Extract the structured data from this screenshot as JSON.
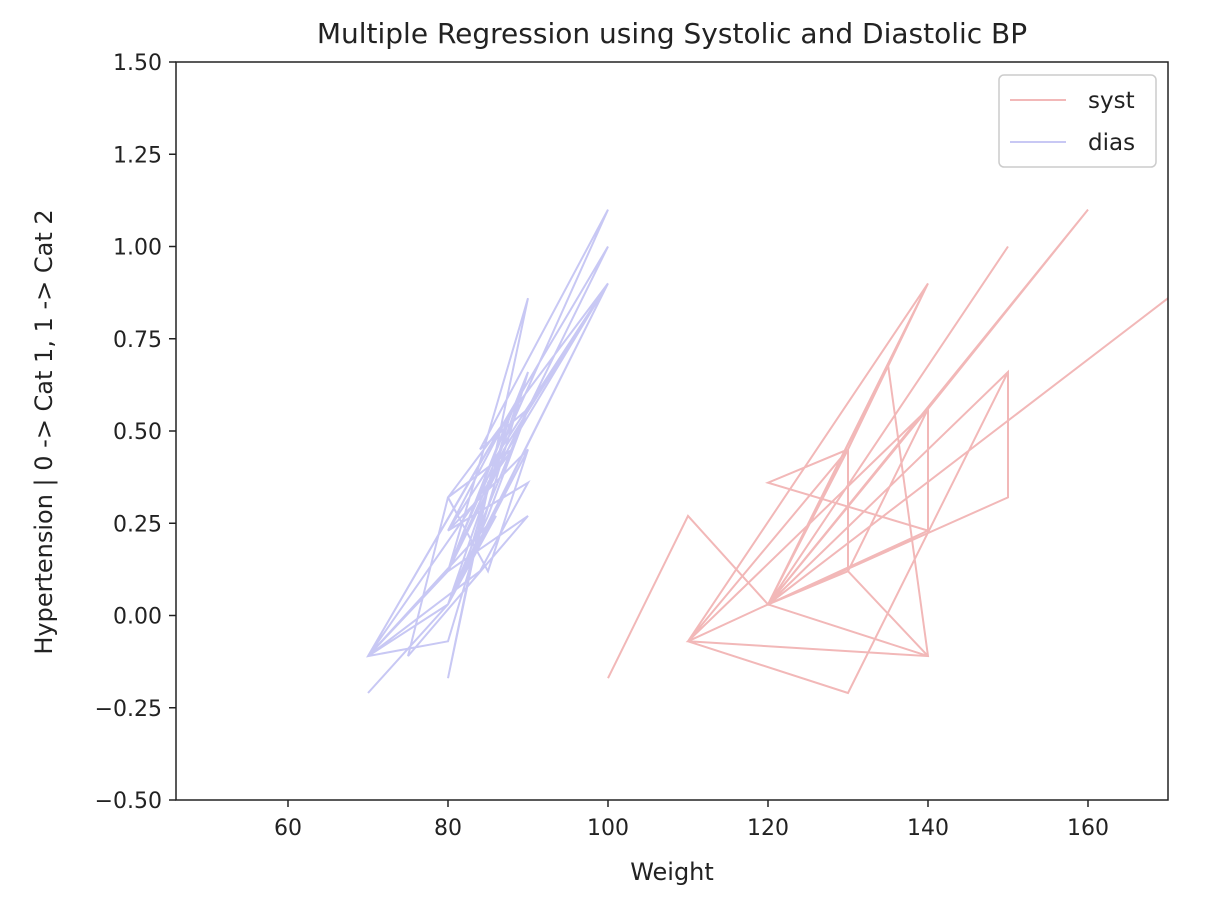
{
  "chart_data": {
    "type": "line",
    "title": "Multiple Regression using Systolic and Diastolic BP",
    "xlabel": "Weight",
    "ylabel": "Hypertension | 0 -> Cat 1, 1 -> Cat 2",
    "xlim": [
      46,
      170
    ],
    "ylim": [
      -0.5,
      1.5
    ],
    "xticks": [
      60,
      80,
      100,
      120,
      140,
      160
    ],
    "xtick_labels": [
      "60",
      "80",
      "100",
      "120",
      "140",
      "160"
    ],
    "yticks": [
      -0.5,
      -0.25,
      0.0,
      0.25,
      0.5,
      0.75,
      1.0,
      1.25,
      1.5
    ],
    "ytick_labels": [
      "−0.50",
      "−0.25",
      "0.00",
      "0.25",
      "0.50",
      "0.75",
      "1.00",
      "1.25",
      "1.50"
    ],
    "grid": false,
    "legend_position": "top-right",
    "series": [
      {
        "name": "syst",
        "color": "#f2b8b8",
        "x": [
          100,
          110,
          120,
          140,
          130,
          110,
          140,
          120,
          150,
          150,
          120,
          130,
          140,
          160,
          120,
          130,
          130,
          140,
          110,
          130,
          150,
          120,
          135,
          140,
          110,
          140,
          140,
          120,
          130,
          120,
          150,
          120,
          130,
          140,
          120,
          170,
          120,
          140,
          140,
          120,
          150,
          120,
          130,
          110,
          120,
          160
        ],
        "y": [
          -0.17,
          0.27,
          0.03,
          0.9,
          0.45,
          -0.07,
          0.9,
          0.03,
          0.66,
          0.32,
          0.03,
          0.12,
          0.56,
          1.1,
          0.03,
          0.45,
          0.12,
          0.56,
          -0.07,
          -0.21,
          0.66,
          0.03,
          0.68,
          -0.11,
          -0.07,
          0.56,
          0.23,
          0.36,
          0.45,
          0.03,
          1.0,
          0.03,
          0.12,
          -0.11,
          0.03,
          0.86,
          0.03,
          0.56,
          0.23,
          0.03,
          0.66,
          0.03,
          0.45,
          -0.07,
          0.03,
          1.1
        ]
      },
      {
        "name": "dias",
        "color": "#c8c8f4",
        "x": [
          70,
          80,
          90,
          80,
          70,
          85,
          100,
          80,
          90,
          75,
          80,
          88,
          70,
          80,
          100,
          85,
          80,
          90,
          80,
          88,
          70,
          86,
          80,
          90,
          84,
          100,
          82,
          90,
          80,
          87,
          100,
          80,
          85,
          90,
          80,
          88,
          82,
          100,
          80,
          90,
          84,
          70,
          80,
          90,
          85,
          80,
          90
        ],
        "y": [
          -0.21,
          0.03,
          0.66,
          -0.07,
          -0.11,
          0.45,
          1.0,
          0.12,
          0.27,
          -0.11,
          0.32,
          0.45,
          -0.11,
          0.03,
          0.9,
          0.36,
          -0.17,
          0.86,
          0.12,
          0.56,
          -0.11,
          0.27,
          0.03,
          0.56,
          0.45,
          1.1,
          0.23,
          0.66,
          0.12,
          0.45,
          0.9,
          0.32,
          0.12,
          0.45,
          0.23,
          0.56,
          0.12,
          0.9,
          0.23,
          0.36,
          0.12,
          -0.11,
          0.12,
          0.56,
          0.27,
          0.03,
          0.45
        ]
      }
    ]
  }
}
